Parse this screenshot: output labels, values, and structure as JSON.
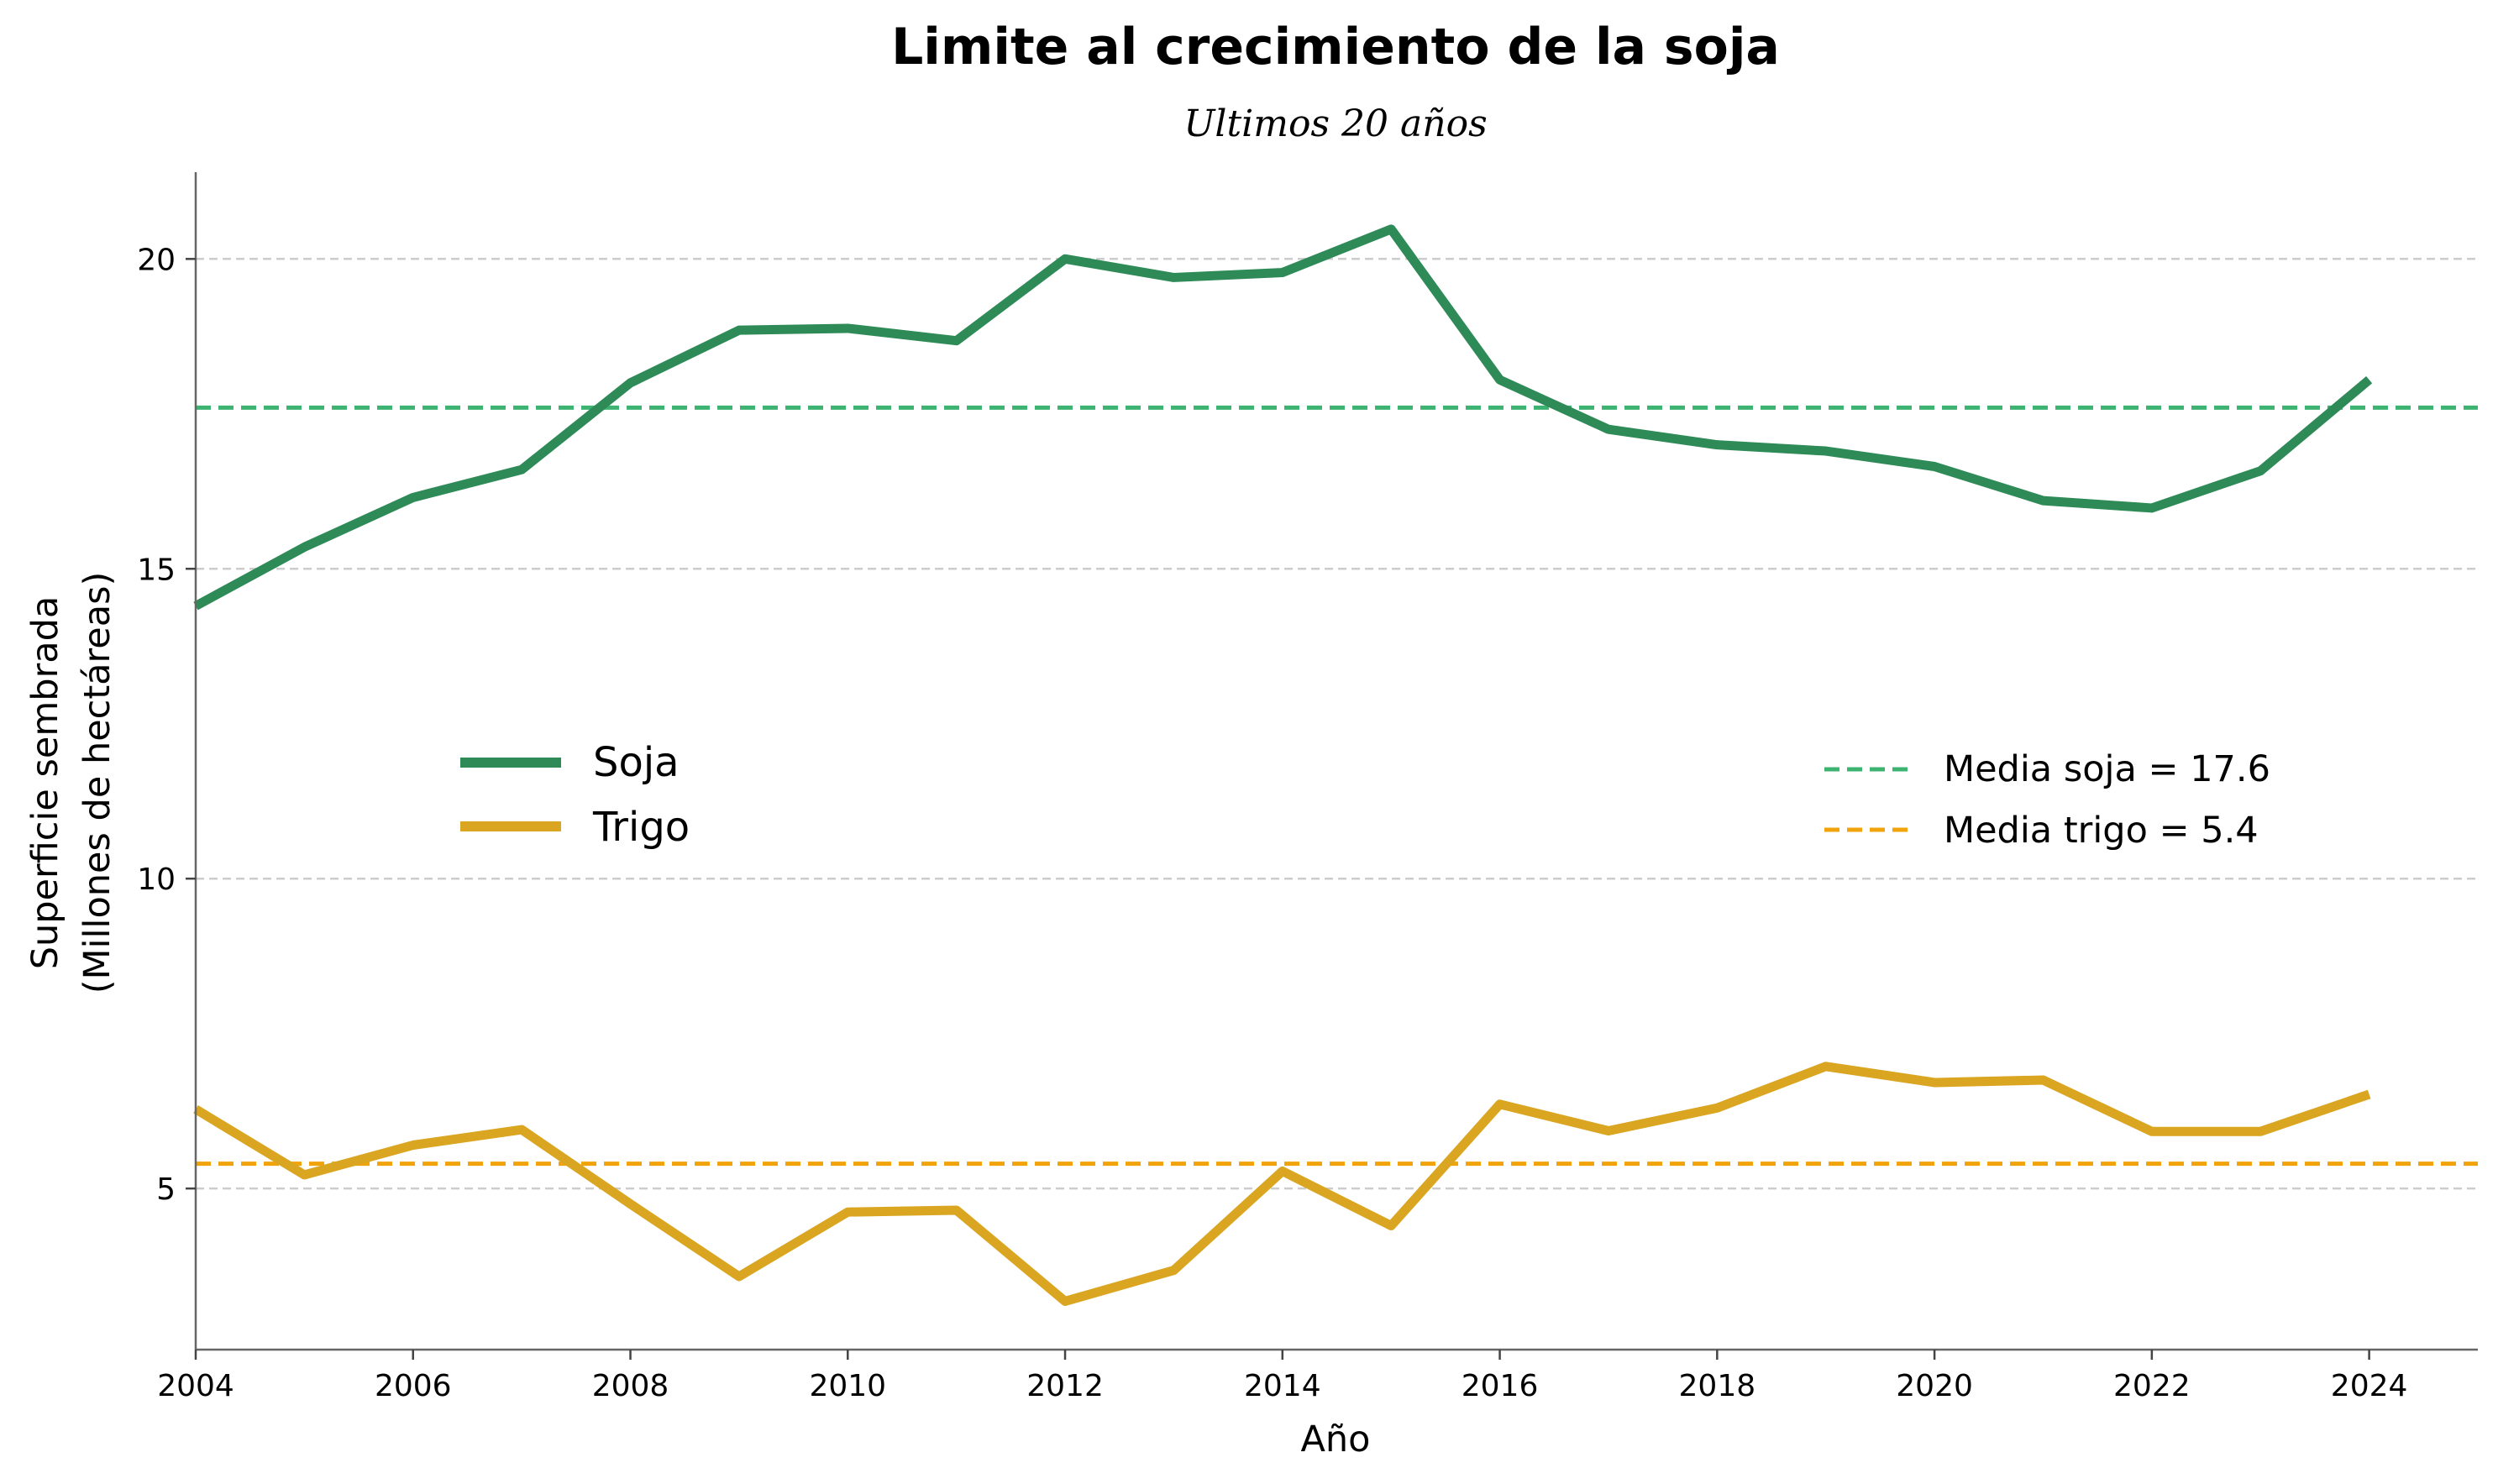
{
  "chart_data": {
    "type": "line",
    "title": "Limite al crecimiento de la soja",
    "subtitle": "Ultimos 20 años",
    "xlabel": "Año",
    "ylabel_line1": "Superficie sembrada",
    "ylabel_line2": "(Millones de hectáreas)",
    "xlim": [
      2004,
      2025
    ],
    "ylim": [
      2.4,
      21.4
    ],
    "x_ticks": [
      2004,
      2006,
      2008,
      2010,
      2012,
      2014,
      2016,
      2018,
      2020,
      2022,
      2024
    ],
    "y_ticks": [
      5,
      10,
      15,
      20
    ],
    "grid": "y-dashed",
    "x": [
      2004,
      2005,
      2006,
      2007,
      2008,
      2009,
      2010,
      2011,
      2012,
      2013,
      2014,
      2015,
      2016,
      2017,
      2018,
      2019,
      2020,
      2021,
      2022,
      2023,
      2024
    ],
    "series": [
      {
        "name": "Soja",
        "color": "#2e8b57",
        "values": [
          14.4,
          15.35,
          16.15,
          16.6,
          18.0,
          18.85,
          18.88,
          18.68,
          20.0,
          19.7,
          19.78,
          20.48,
          18.05,
          17.25,
          17.0,
          16.9,
          16.65,
          16.1,
          15.98,
          16.58,
          18.05
        ]
      },
      {
        "name": "Trigo",
        "color": "#daa520",
        "values": [
          6.28,
          5.22,
          5.7,
          5.95,
          4.75,
          3.58,
          4.62,
          4.65,
          3.18,
          3.68,
          5.28,
          4.4,
          6.36,
          5.93,
          6.3,
          6.97,
          6.71,
          6.75,
          5.92,
          5.92,
          6.52
        ]
      }
    ],
    "reference_lines": [
      {
        "name": "Media soja = 17.6",
        "value": 17.6,
        "color": "#3cb371"
      },
      {
        "name": "Media trigo = 5.4",
        "value": 5.4,
        "color": "#f0a30a"
      }
    ],
    "legend_series_placement": "center-left",
    "legend_means_placement": "center-right"
  }
}
